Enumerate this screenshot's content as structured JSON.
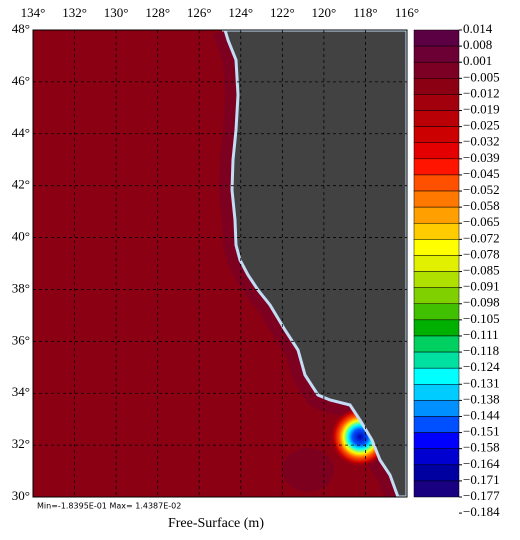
{
  "map": {
    "xlabel": "Free-Surface (m)",
    "stats": "Min=-1.8395E-01  Max= 1.4387E-02",
    "xlim": [
      134,
      116
    ],
    "ylim": [
      30,
      48
    ],
    "lon_ticks": [
      {
        "value": 134,
        "label": "134°"
      },
      {
        "value": 132,
        "label": "132°"
      },
      {
        "value": 130,
        "label": "130°"
      },
      {
        "value": 128,
        "label": "128°"
      },
      {
        "value": 126,
        "label": "126°"
      },
      {
        "value": 124,
        "label": "124°"
      },
      {
        "value": 122,
        "label": "122°"
      },
      {
        "value": 120,
        "label": "120°"
      },
      {
        "value": 118,
        "label": "118°"
      },
      {
        "value": 116,
        "label": "116°"
      }
    ],
    "lat_ticks": [
      {
        "value": 48,
        "label": "48°"
      },
      {
        "value": 46,
        "label": "46°"
      },
      {
        "value": 44,
        "label": "44°"
      },
      {
        "value": 42,
        "label": "42°"
      },
      {
        "value": 40,
        "label": "40°"
      },
      {
        "value": 38,
        "label": "38°"
      },
      {
        "value": 36,
        "label": "36°"
      },
      {
        "value": 34,
        "label": "34°"
      },
      {
        "value": 32,
        "label": "32°"
      },
      {
        "value": 30,
        "label": "30°"
      }
    ],
    "colorbar": {
      "levels": [
        0.014,
        0.008,
        0.001,
        {
          "value": -0.005,
          "label": "−0.005"
        },
        {
          "value": -0.012,
          "label": "−0.012"
        },
        {
          "value": -0.019,
          "label": "−0.019"
        },
        {
          "value": -0.025,
          "label": "−0.025"
        },
        {
          "value": -0.032,
          "label": "−0.032"
        },
        {
          "value": -0.039,
          "label": "−0.039"
        },
        {
          "value": -0.045,
          "label": "−0.045"
        },
        {
          "value": -0.052,
          "label": "−0.052"
        },
        {
          "value": -0.058,
          "label": "−0.058"
        },
        {
          "value": -0.065,
          "label": "−0.065"
        },
        {
          "value": -0.072,
          "label": "−0.072"
        },
        {
          "value": -0.078,
          "label": "−0.078"
        },
        {
          "value": -0.085,
          "label": "−0.085"
        },
        {
          "value": -0.091,
          "label": "−0.091"
        },
        {
          "value": -0.098,
          "label": "−0.098"
        },
        {
          "value": -0.105,
          "label": "−0.105"
        },
        {
          "value": -0.111,
          "label": "−0.111"
        },
        {
          "value": -0.118,
          "label": "−0.118"
        },
        {
          "value": -0.124,
          "label": "−0.124"
        },
        {
          "value": -0.131,
          "label": "−0.131"
        },
        {
          "value": -0.138,
          "label": "−0.138"
        },
        {
          "value": -0.144,
          "label": "−0.144"
        },
        {
          "value": -0.151,
          "label": "−0.151"
        },
        {
          "value": -0.158,
          "label": "−0.158"
        },
        {
          "value": -0.164,
          "label": "−0.164"
        },
        {
          "value": -0.171,
          "label": "−0.171"
        },
        {
          "value": -0.177,
          "label": "−0.177"
        },
        {
          "value": -0.184,
          "label": "−0.184"
        }
      ],
      "colors": [
        "#5c0044",
        "#6c0034",
        "#7c0024",
        "#8c0014",
        "#a2000c",
        "#b80006",
        "#cc0000",
        "#e40000",
        "#ff1400",
        "#ff5000",
        "#ff7800",
        "#ffa000",
        "#ffcc00",
        "#ffff00",
        "#e0f000",
        "#b0e000",
        "#80d000",
        "#40c000",
        "#00b000",
        "#00d060",
        "#00e0a0",
        "#00ffff",
        "#00ccff",
        "#0090ff",
        "#0050ff",
        "#0000ff",
        "#0000d0",
        "#0000a0",
        "#180080"
      ]
    }
  }
}
